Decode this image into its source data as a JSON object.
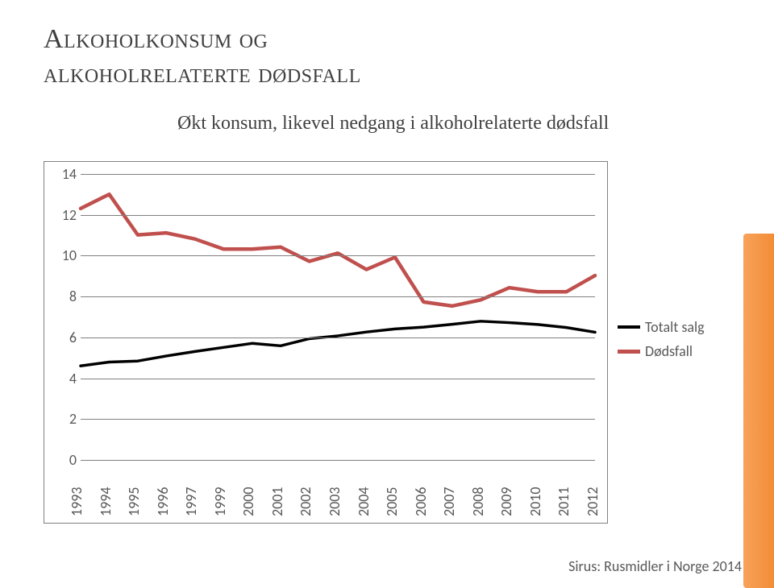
{
  "title_line1": "Alkoholkonsum og",
  "title_line2": "alkoholrelaterte dødsfall",
  "subtitle": "Økt konsum, likevel nedgang i alkoholrelaterte dødsfall",
  "source": "Sirus: Rusmidler i Norge 2014",
  "chart": {
    "type": "line",
    "background_color": "#ffffff",
    "border_color": "#808080",
    "grid_color": "#808080",
    "axis_font": "Calibri",
    "axis_fontsize": 18,
    "axis_color": "#595959",
    "ylim": [
      0,
      14
    ],
    "ytick_step": 2,
    "yticks": [
      0,
      2,
      4,
      6,
      8,
      10,
      12,
      14
    ],
    "categories": [
      "1993",
      "1994",
      "1995",
      "1996",
      "1997",
      "1999",
      "2000",
      "2001",
      "2002",
      "2003",
      "2004",
      "2005",
      "2006",
      "2007",
      "2008",
      "2009",
      "2010",
      "2011",
      "2012"
    ],
    "series": [
      {
        "name": "Totalt salg",
        "color": "#000000",
        "line_width": 3.5,
        "values": [
          4.55,
          4.74,
          4.79,
          5.04,
          5.26,
          5.46,
          5.66,
          5.54,
          5.89,
          6.03,
          6.22,
          6.37,
          6.46,
          6.6,
          6.75,
          6.68,
          6.59,
          6.44,
          6.21
        ]
      },
      {
        "name": "Dødsfall",
        "color": "#c0504d",
        "line_width": 4.5,
        "values": [
          12.3,
          13.0,
          11.0,
          11.1,
          10.8,
          10.3,
          10.3,
          10.4,
          9.7,
          10.1,
          9.3,
          9.9,
          7.7,
          7.5,
          7.8,
          8.4,
          8.2,
          8.2,
          9.0
        ]
      }
    ],
    "legend": {
      "items": [
        "Totalt salg",
        "Dødsfall"
      ],
      "colors": [
        "#000000",
        "#c0504d"
      ],
      "fontsize": 18
    }
  },
  "decor": {
    "band_color_start": "#f7a25a",
    "band_color_end": "#f38d37"
  },
  "title_style": {
    "fontsize": 34,
    "font_variant": "small-caps",
    "color": "#404040"
  }
}
